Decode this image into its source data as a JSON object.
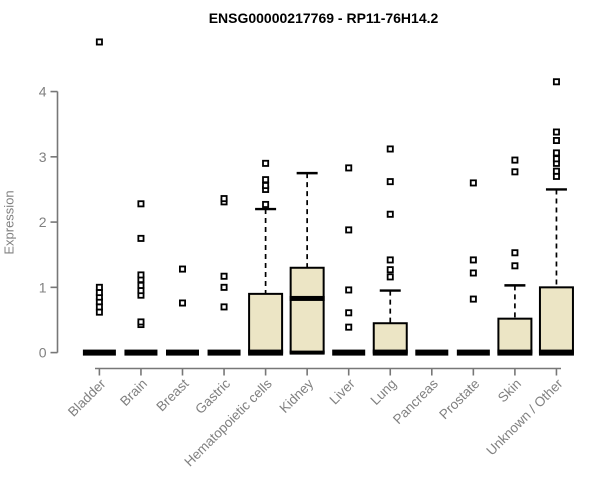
{
  "chart_data": {
    "type": "box",
    "title": "ENSG00000217769 - RP11-76H14.2",
    "ylabel": "Expression",
    "xlabel": "",
    "yticks": [
      0,
      1,
      2,
      3,
      4
    ],
    "ylim": [
      0,
      4.8
    ],
    "grid": false,
    "legend": "none",
    "colors": {
      "box_fill": "#ece5c5",
      "box_stroke": "#000000",
      "axis_line": "#777777",
      "tick_text": "#808080",
      "title_text": "#000000"
    },
    "categories": [
      {
        "label": "Bladder",
        "q1": 0,
        "median": 0,
        "q3": 0,
        "whisker_low": 0,
        "whisker_high": 0,
        "outliers": [
          0.62,
          0.7,
          0.78,
          0.85,
          0.92,
          1.0,
          4.76
        ]
      },
      {
        "label": "Brain",
        "q1": 0,
        "median": 0,
        "q3": 0,
        "whisker_low": 0,
        "whisker_high": 0,
        "outliers": [
          0.43,
          0.47,
          0.88,
          0.95,
          1.03,
          1.12,
          1.19,
          1.75,
          2.28
        ]
      },
      {
        "label": "Breast",
        "q1": 0,
        "median": 0,
        "q3": 0,
        "whisker_low": 0,
        "whisker_high": 0,
        "outliers": [
          0.76,
          1.28
        ]
      },
      {
        "label": "Gastric",
        "q1": 0,
        "median": 0,
        "q3": 0,
        "whisker_low": 0,
        "whisker_high": 0,
        "outliers": [
          0.7,
          1.0,
          1.17,
          2.31,
          2.36
        ]
      },
      {
        "label": "Hematopoietic cells",
        "q1": 0,
        "median": 0,
        "q3": 0.9,
        "whisker_low": 0,
        "whisker_high": 2.2,
        "outliers": [
          2.27,
          2.5,
          2.56,
          2.65,
          2.9
        ]
      },
      {
        "label": "Kidney",
        "q1": 0,
        "median": 0.83,
        "q3": 1.3,
        "whisker_low": 0,
        "whisker_high": 2.75,
        "outliers": []
      },
      {
        "label": "Liver",
        "q1": 0,
        "median": 0,
        "q3": 0,
        "whisker_low": 0,
        "whisker_high": 0,
        "outliers": [
          0.39,
          0.61,
          0.96,
          1.88,
          2.83
        ]
      },
      {
        "label": "Lung",
        "q1": 0,
        "median": 0,
        "q3": 0.45,
        "whisker_low": 0,
        "whisker_high": 0.95,
        "outliers": [
          1.16,
          1.27,
          1.42,
          2.12,
          2.62,
          3.12
        ]
      },
      {
        "label": "Pancreas",
        "q1": 0,
        "median": 0,
        "q3": 0,
        "whisker_low": 0,
        "whisker_high": 0,
        "outliers": []
      },
      {
        "label": "Prostate",
        "q1": 0,
        "median": 0,
        "q3": 0,
        "whisker_low": 0,
        "whisker_high": 0,
        "outliers": [
          0.82,
          1.22,
          1.42,
          2.6
        ]
      },
      {
        "label": "Skin",
        "q1": 0,
        "median": 0,
        "q3": 0.52,
        "whisker_low": 0,
        "whisker_high": 1.03,
        "outliers": [
          1.33,
          1.53,
          2.77,
          2.95
        ]
      },
      {
        "label": "Unknown / Other",
        "q1": 0,
        "median": 0,
        "q3": 1.0,
        "whisker_low": 0,
        "whisker_high": 2.5,
        "outliers": [
          2.7,
          2.78,
          2.9,
          2.97,
          3.06,
          3.25,
          3.38,
          4.15
        ]
      }
    ]
  }
}
